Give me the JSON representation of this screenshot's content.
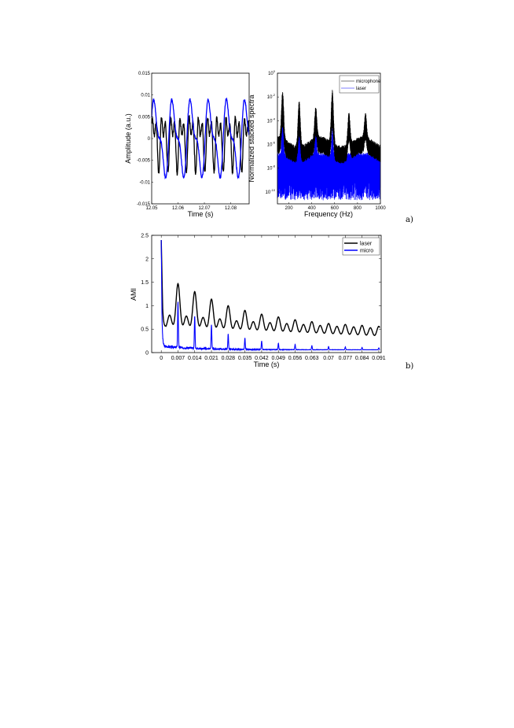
{
  "chart_data": [
    {
      "type": "line",
      "title": "",
      "xlabel": "Time (s)",
      "ylabel": "Amplitude (a.u.)",
      "xlim": [
        12.05,
        12.087
      ],
      "ylim": [
        -0.015,
        0.015
      ],
      "xticks": [
        "12.05",
        "12.06",
        "12.07",
        "12.08"
      ],
      "yticks": [
        "0.015",
        "0.01",
        "0.005",
        "0",
        "-0.005",
        "-0.01",
        "-0.015"
      ],
      "grid": false,
      "series": [
        {
          "color": "#000000",
          "approx_period_s": 0.0035,
          "approx_amplitude": 0.008
        },
        {
          "color": "#0000ff",
          "approx_period_s": 0.0069,
          "approx_amplitude": 0.009
        }
      ]
    },
    {
      "type": "line",
      "title": "",
      "xlabel": "Frequency (Hz)",
      "ylabel": "Normalized stacked spectra",
      "xlim": [
        100,
        1000
      ],
      "ylog": true,
      "ylim": [
        1e-11,
        1
      ],
      "xticks": [
        "200",
        "400",
        "600",
        "800",
        "1000"
      ],
      "yticks": [
        {
          "base": "10",
          "exp": "0"
        },
        {
          "base": "10",
          "exp": "-2"
        },
        {
          "base": "10",
          "exp": "-4"
        },
        {
          "base": "10",
          "exp": "-6"
        },
        {
          "base": "10",
          "exp": "-8"
        },
        {
          "base": "10",
          "exp": "-10"
        }
      ],
      "legend_position": "top-right",
      "series": [
        {
          "name": "microphone",
          "color": "#000000",
          "peaks_hz": [
            145,
            290,
            435,
            580,
            725,
            870
          ]
        },
        {
          "name": "laser",
          "color": "#0000ff",
          "peaks_hz": [
            145,
            290,
            435,
            580
          ]
        }
      ]
    },
    {
      "type": "line",
      "title": "",
      "xlabel": "Time (s)",
      "ylabel": "AMI",
      "xlim": [
        -0.004,
        0.092
      ],
      "ylim": [
        0,
        2.5
      ],
      "xticks": [
        "0",
        "0.007",
        "0.014",
        "0.021",
        "0.028",
        "0.035",
        "0.042",
        "0.049",
        "0.056",
        "0.063",
        "0.07",
        "0.077",
        "0.084",
        "0.091"
      ],
      "yticks": [
        "0",
        "0.5",
        "1",
        "1.5",
        "2",
        "2.5"
      ],
      "legend_position": "top-right",
      "series": [
        {
          "name": "laser",
          "color": "#000000",
          "start": 2.4,
          "peak_times_s": [
            0.0035,
            0.007,
            0.0105,
            0.014,
            0.0175,
            0.021,
            0.0245,
            0.028,
            0.0315,
            0.035,
            0.0385,
            0.042,
            0.0455,
            0.049,
            0.0525,
            0.056,
            0.0595,
            0.063,
            0.0665,
            0.07,
            0.0735,
            0.077,
            0.0805,
            0.084,
            0.0875,
            0.091
          ],
          "peak_values": [
            0.8,
            1.47,
            0.78,
            1.3,
            0.75,
            1.14,
            0.72,
            1.0,
            0.68,
            0.9,
            0.66,
            0.82,
            0.64,
            0.76,
            0.62,
            0.7,
            0.6,
            0.66,
            0.58,
            0.62,
            0.56,
            0.6,
            0.55,
            0.58,
            0.53,
            0.56
          ]
        },
        {
          "name": "micro",
          "color": "#0000ff",
          "start": 2.4,
          "spike_times_s": [
            0.007,
            0.014,
            0.021,
            0.028,
            0.035,
            0.042,
            0.049,
            0.056,
            0.063,
            0.07,
            0.077,
            0.084,
            0.091
          ],
          "spike_values": [
            1.05,
            0.75,
            0.58,
            0.38,
            0.3,
            0.24,
            0.2,
            0.17,
            0.15,
            0.13,
            0.12,
            0.11,
            0.1
          ],
          "baseline": 0.06
        }
      ]
    }
  ],
  "panel_labels": [
    "a)",
    "b)"
  ]
}
